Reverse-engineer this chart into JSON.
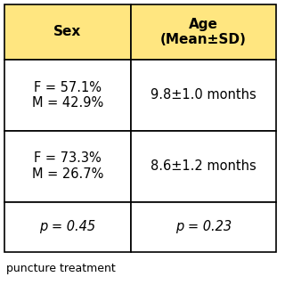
{
  "header_bg": "#FFE680",
  "header_color": "#000000",
  "body_bg": "#FFFFFF",
  "border_color": "#000000",
  "col1_header": "Sex",
  "col2_header": "Age\n(Mean±SD)",
  "rows": [
    {
      "col1": "F = 57.1%\nM = 42.9%",
      "col2": "9.8±1.0 months"
    },
    {
      "col1": "F = 73.3%\nM = 26.7%",
      "col2": "8.6±1.2 months"
    },
    {
      "col1_italic": "p = 0.45",
      "col2_italic": "p = 0.23"
    }
  ],
  "footer_text": "puncture treatment",
  "figsize": [
    3.2,
    3.2
  ],
  "dpi": 100,
  "header_fontsize": 11,
  "body_fontsize": 10.5,
  "footer_fontsize": 9
}
